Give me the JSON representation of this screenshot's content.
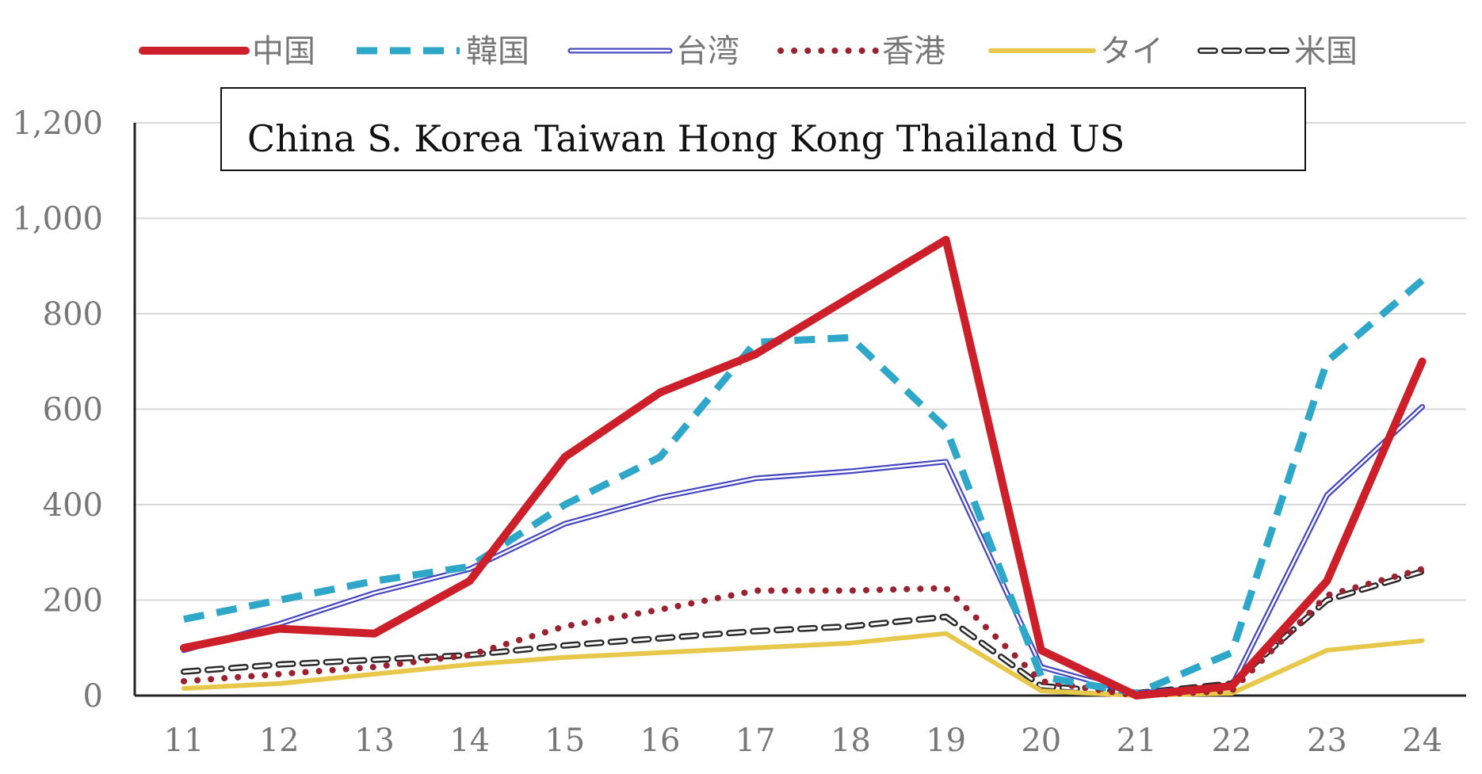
{
  "chart_data": {
    "type": "line",
    "title": "",
    "xlabel": "",
    "ylabel": "",
    "categories": [
      "11",
      "12",
      "13",
      "14",
      "15",
      "16",
      "17",
      "18",
      "19",
      "20",
      "21",
      "22",
      "23",
      "24"
    ],
    "ylim": [
      0,
      1200
    ],
    "yticks": [
      0,
      200,
      400,
      600,
      800,
      1000,
      1200
    ],
    "ytick_labels": [
      "0",
      "200",
      "400",
      "600",
      "800",
      "1,000",
      "1,200"
    ],
    "grid": true,
    "legend_position": "top",
    "annotation": "China  S. Korea  Taiwan  Hong Kong  Thailand  US",
    "series": [
      {
        "name": "中国",
        "color": "#cc1f2a",
        "style": "thick-solid",
        "values": [
          100,
          140,
          130,
          240,
          500,
          635,
          715,
          835,
          955,
          95,
          0,
          20,
          240,
          700
        ]
      },
      {
        "name": "韓国",
        "color": "#2ea7c9",
        "style": "dashed",
        "values": [
          160,
          200,
          240,
          270,
          400,
          500,
          740,
          750,
          560,
          40,
          5,
          90,
          700,
          870
        ]
      },
      {
        "name": "台湾",
        "color": "#4747c2",
        "style": "double",
        "values": [
          95,
          150,
          215,
          265,
          360,
          415,
          455,
          470,
          490,
          60,
          5,
          20,
          420,
          605
        ]
      },
      {
        "name": "香港",
        "color": "#9a2230",
        "style": "dotted",
        "values": [
          30,
          45,
          60,
          85,
          145,
          180,
          220,
          220,
          225,
          30,
          0,
          10,
          210,
          265
        ]
      },
      {
        "name": "タイ",
        "color": "#e8c84a",
        "style": "solid",
        "values": [
          15,
          25,
          45,
          65,
          80,
          90,
          100,
          110,
          130,
          10,
          0,
          5,
          95,
          115
        ]
      },
      {
        "name": "米国",
        "color": "#2b2b2b",
        "style": "hollow-dash",
        "values": [
          50,
          65,
          75,
          85,
          105,
          120,
          135,
          145,
          165,
          20,
          5,
          25,
          200,
          260
        ]
      }
    ]
  }
}
